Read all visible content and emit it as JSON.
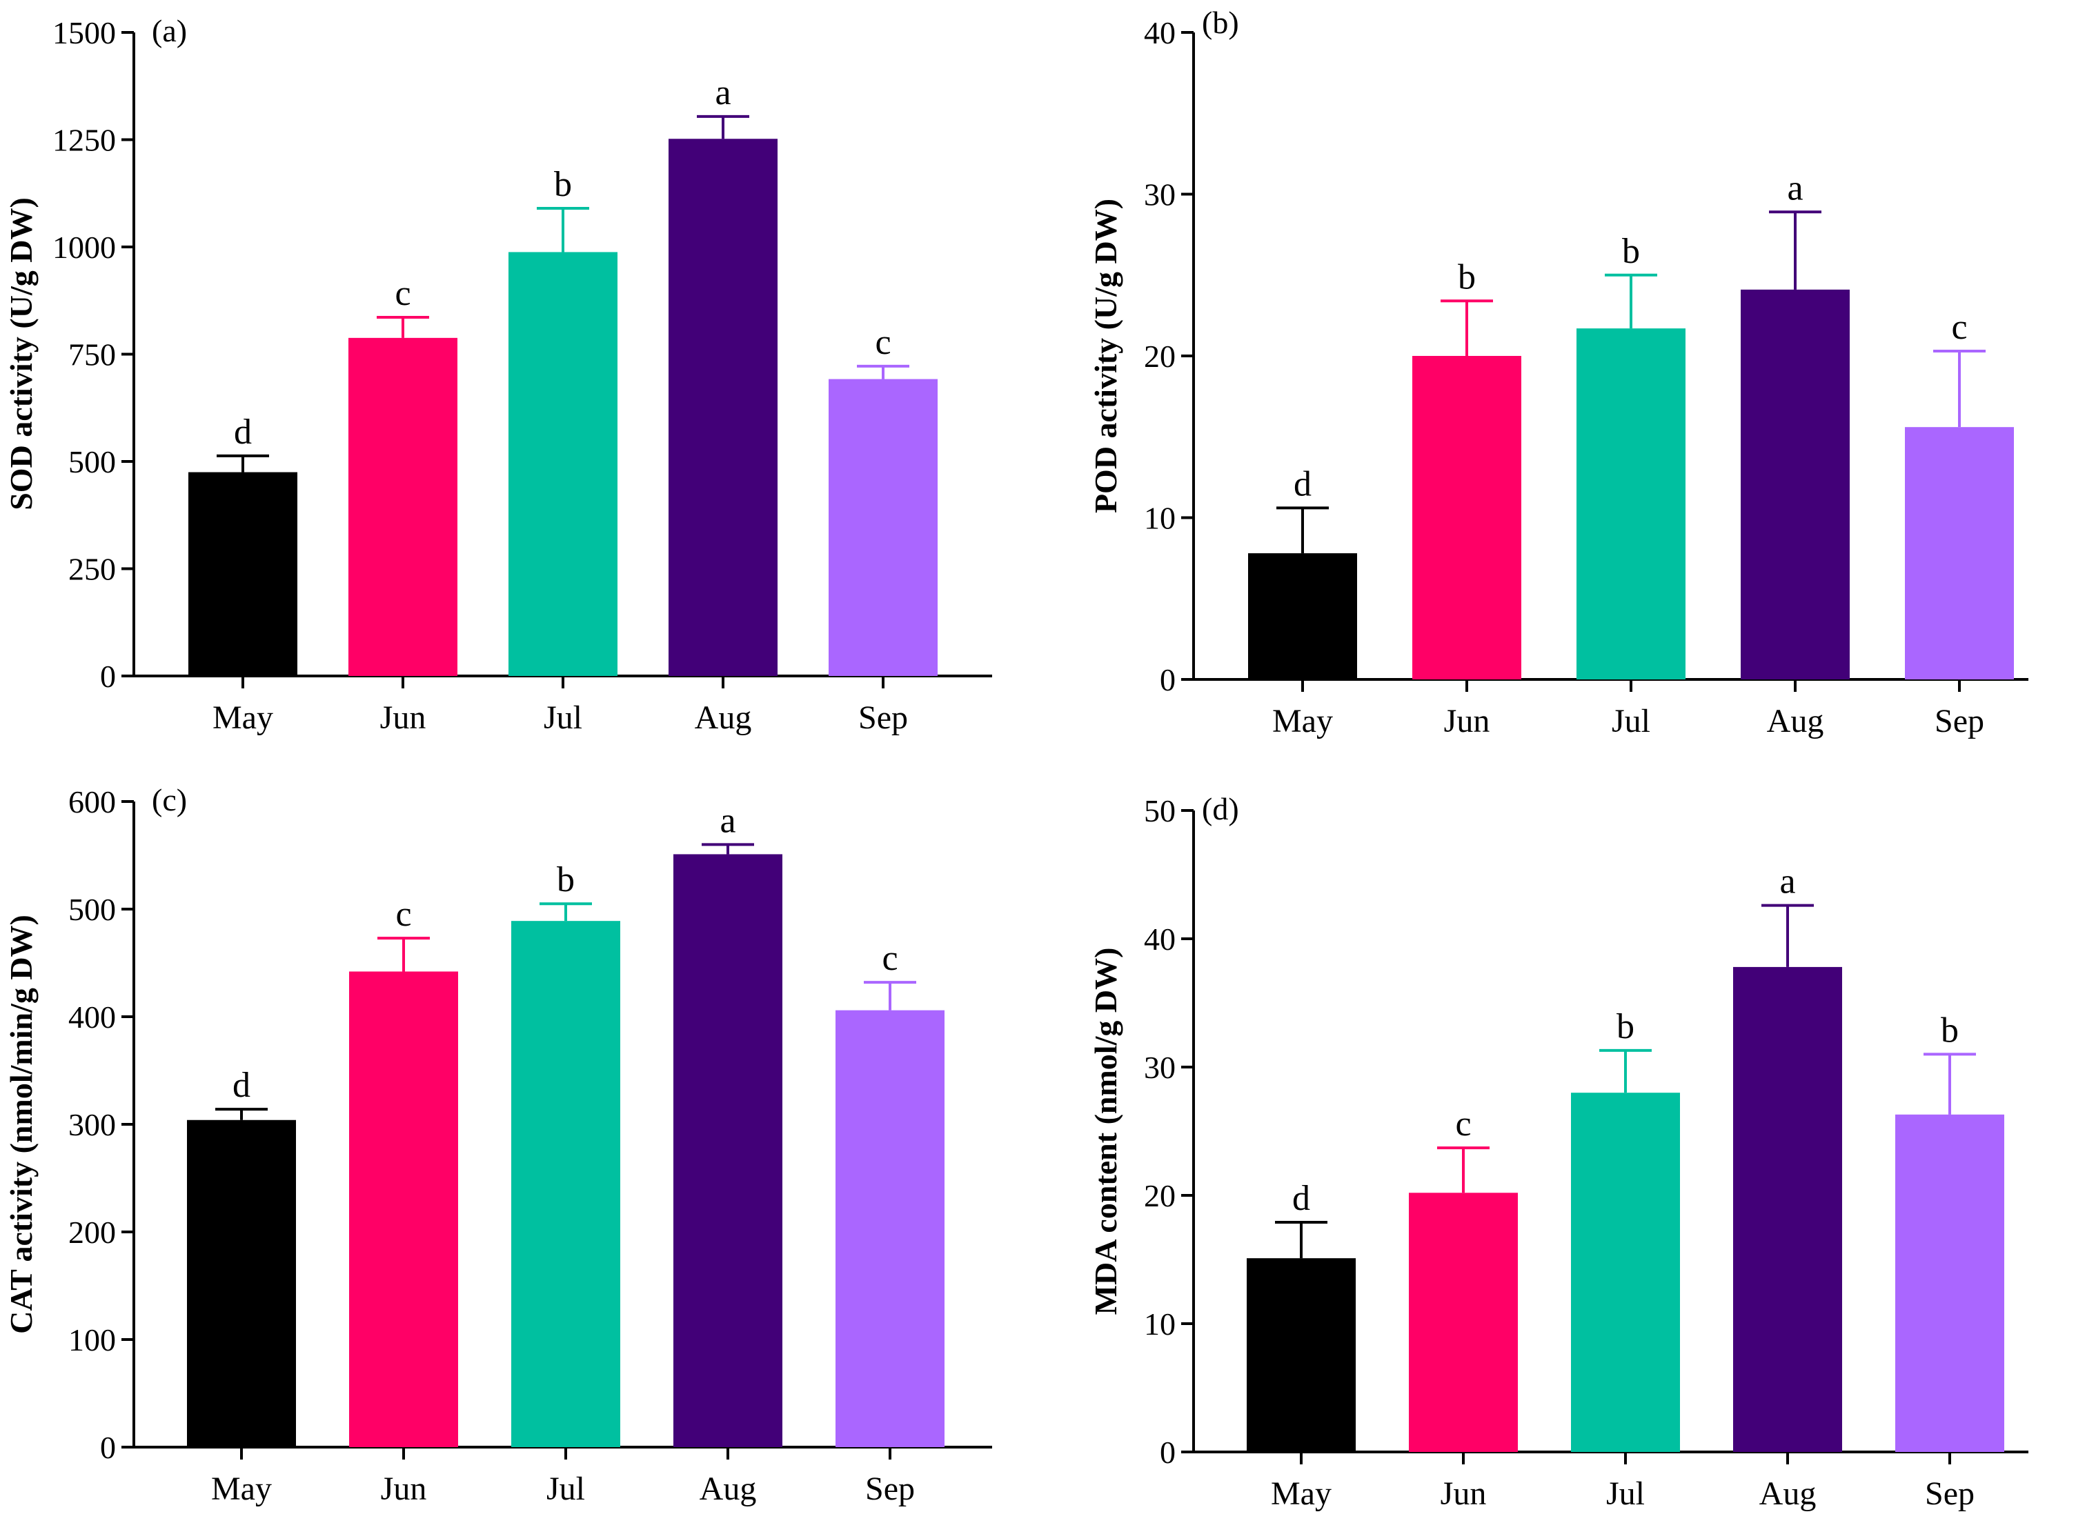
{
  "colors": {
    "May": "#000000",
    "Jun": "#ff0066",
    "Jul": "#00c0a0",
    "Aug": "#420078",
    "Sep": "#aa66ff"
  },
  "chart_data": [
    {
      "type": "bar",
      "panel": "(a)",
      "ylabel": "SOD activity (U/g DW)",
      "categories": [
        "May",
        "Jun",
        "Jul",
        "Aug",
        "Sep"
      ],
      "values": [
        475,
        788,
        988,
        1252,
        692
      ],
      "errors": [
        38,
        48,
        102,
        52,
        30
      ],
      "significance": [
        "d",
        "c",
        "b",
        "a",
        "c"
      ],
      "ylim": [
        0,
        1500
      ],
      "yticks": [
        0,
        250,
        500,
        750,
        1000,
        1250,
        1500
      ]
    },
    {
      "type": "bar",
      "panel": "(b)",
      "ylabel": "POD activity (U/g DW)",
      "categories": [
        "May",
        "Jun",
        "Jul",
        "Aug",
        "Sep"
      ],
      "values": [
        7.8,
        20.0,
        21.7,
        24.1,
        15.6
      ],
      "errors": [
        2.8,
        3.4,
        3.3,
        4.8,
        4.7
      ],
      "significance": [
        "d",
        "b",
        "b",
        "a",
        "c"
      ],
      "ylim": [
        0,
        40
      ],
      "yticks": [
        0,
        10,
        20,
        30,
        40
      ]
    },
    {
      "type": "bar",
      "panel": "(c)",
      "ylabel": "CAT activity (nmol/min/g DW)",
      "categories": [
        "May",
        "Jun",
        "Jul",
        "Aug",
        "Sep"
      ],
      "values": [
        304,
        442,
        489,
        551,
        406
      ],
      "errors": [
        10,
        31,
        16,
        9,
        26
      ],
      "significance": [
        "d",
        "c",
        "b",
        "a",
        "c"
      ],
      "ylim": [
        0,
        600
      ],
      "yticks": [
        0,
        100,
        200,
        300,
        400,
        500,
        600
      ]
    },
    {
      "type": "bar",
      "panel": "(d)",
      "ylabel": "MDA content (nmol/g DW)",
      "categories": [
        "May",
        "Jun",
        "Jul",
        "Aug",
        "Sep"
      ],
      "values": [
        15.1,
        20.2,
        28.0,
        37.8,
        26.3
      ],
      "errors": [
        2.8,
        3.5,
        3.3,
        4.8,
        4.7
      ],
      "significance": [
        "d",
        "c",
        "b",
        "a",
        "b"
      ],
      "ylim": [
        0,
        50
      ],
      "yticks": [
        0,
        10,
        20,
        30,
        40,
        50
      ]
    }
  ]
}
